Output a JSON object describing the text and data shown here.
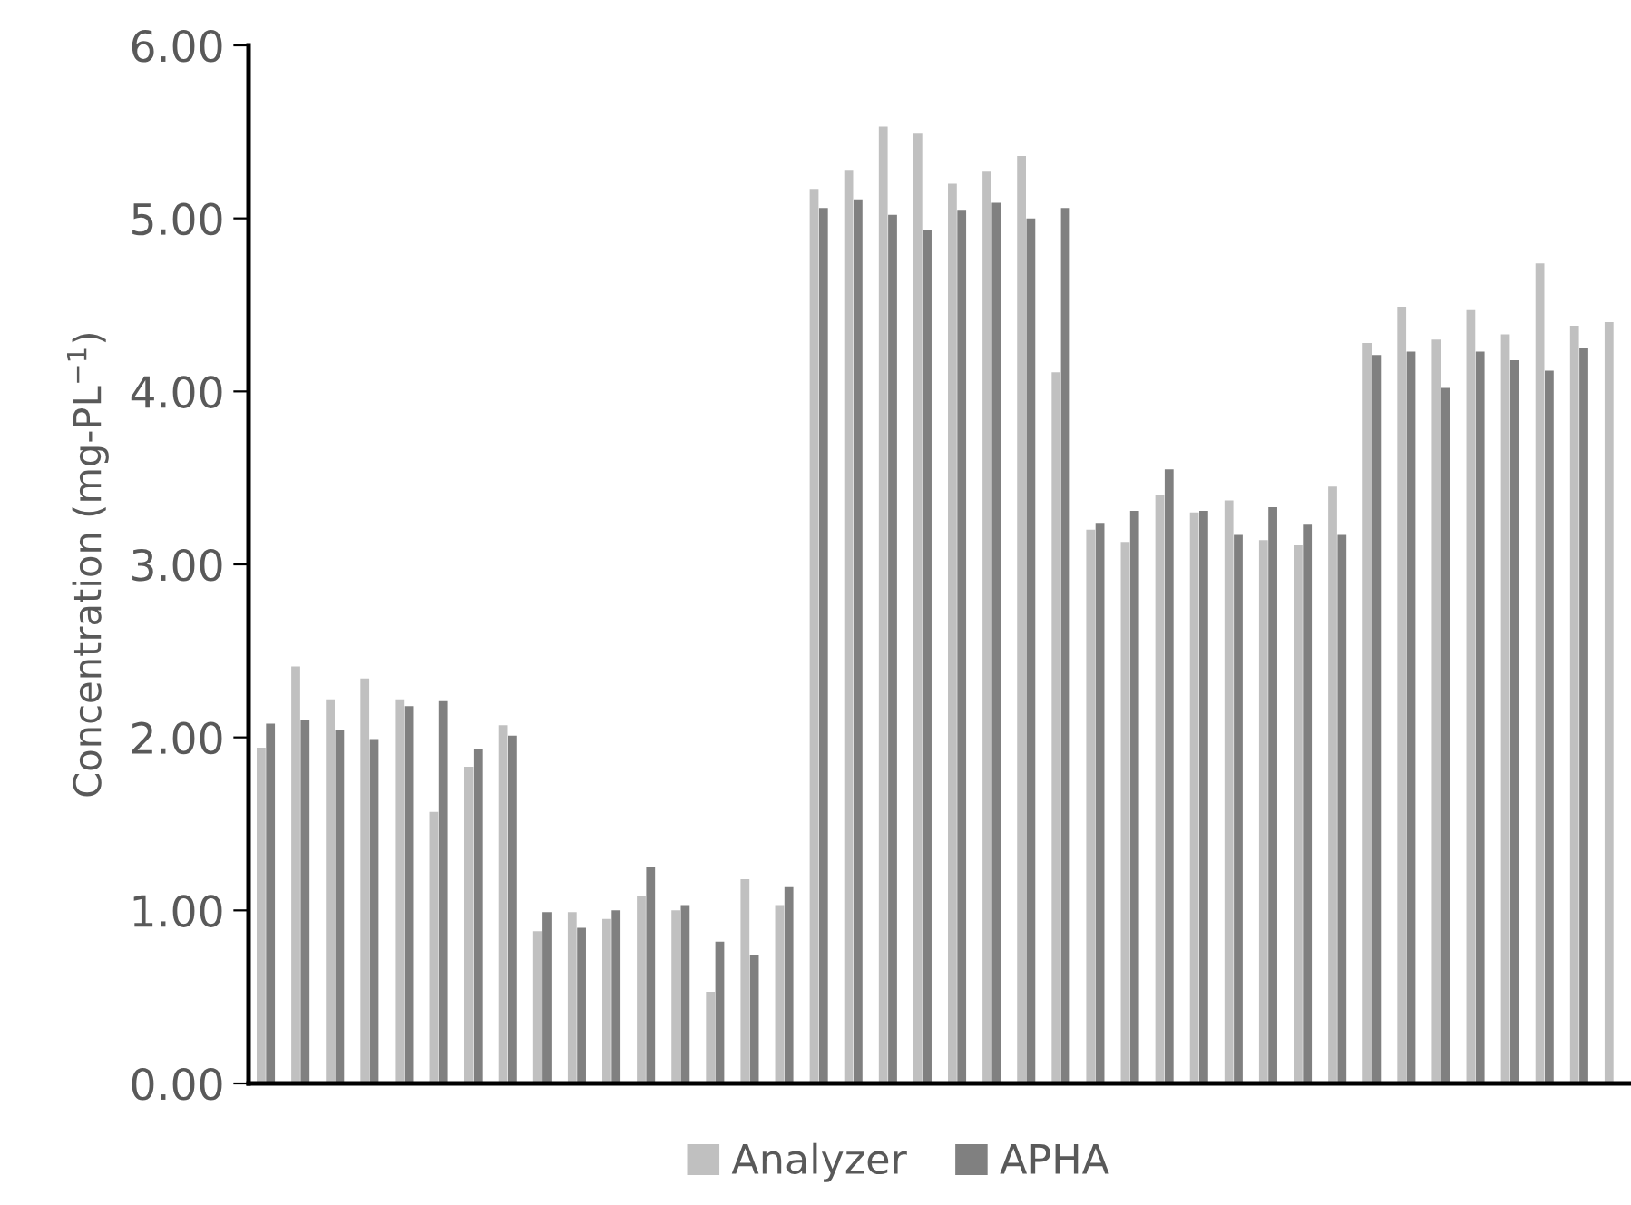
{
  "chart_data": {
    "type": "bar",
    "ylabel": "Concentration (mg-PL$^{−1}$)",
    "categories": [
      null,
      null,
      null,
      null,
      null,
      null,
      null,
      null,
      null,
      null,
      null,
      null,
      null,
      null,
      null,
      null,
      null,
      null,
      null,
      null,
      null,
      null,
      null,
      null,
      null,
      null,
      null,
      null,
      null,
      null,
      null,
      null,
      null,
      null,
      null,
      null,
      null,
      null,
      null,
      null
    ],
    "series": [
      {
        "name": "Analyzer",
        "color": "#c0c0c0",
        "values": [
          1.94,
          2.41,
          2.22,
          2.34,
          2.22,
          1.57,
          1.83,
          2.07,
          0.88,
          0.99,
          0.95,
          1.08,
          1.0,
          0.53,
          1.18,
          1.03,
          5.17,
          5.28,
          5.53,
          5.49,
          5.2,
          5.27,
          5.36,
          4.11,
          3.2,
          3.13,
          3.4,
          3.3,
          3.37,
          3.14,
          3.11,
          3.45,
          4.28,
          4.49,
          4.3,
          4.47,
          4.33,
          4.74,
          4.38,
          4.4
        ]
      },
      {
        "name": "APHA",
        "color": "#808080",
        "values": [
          2.08,
          2.1,
          2.04,
          1.99,
          2.18,
          2.21,
          1.93,
          2.01,
          0.99,
          0.9,
          1.0,
          1.25,
          1.03,
          0.82,
          0.74,
          1.14,
          5.06,
          5.11,
          5.02,
          4.93,
          5.05,
          5.09,
          5.0,
          5.06,
          3.24,
          3.31,
          3.55,
          3.31,
          3.17,
          3.33,
          3.23,
          3.17,
          4.21,
          4.23,
          4.02,
          4.23,
          4.18,
          4.12,
          4.25,
          null
        ]
      }
    ],
    "ylim": [
      0,
      6
    ],
    "yticks": [
      {
        "value": 0,
        "label": "0.00"
      },
      {
        "value": 1,
        "label": "1.00"
      },
      {
        "value": 2,
        "label": "2.00"
      },
      {
        "value": 3,
        "label": "3.00"
      },
      {
        "value": 4,
        "label": "4.00"
      },
      {
        "value": 5,
        "label": "5.00"
      },
      {
        "value": 6,
        "label": "6.00"
      }
    ],
    "grid": false,
    "legend": "bottom"
  }
}
